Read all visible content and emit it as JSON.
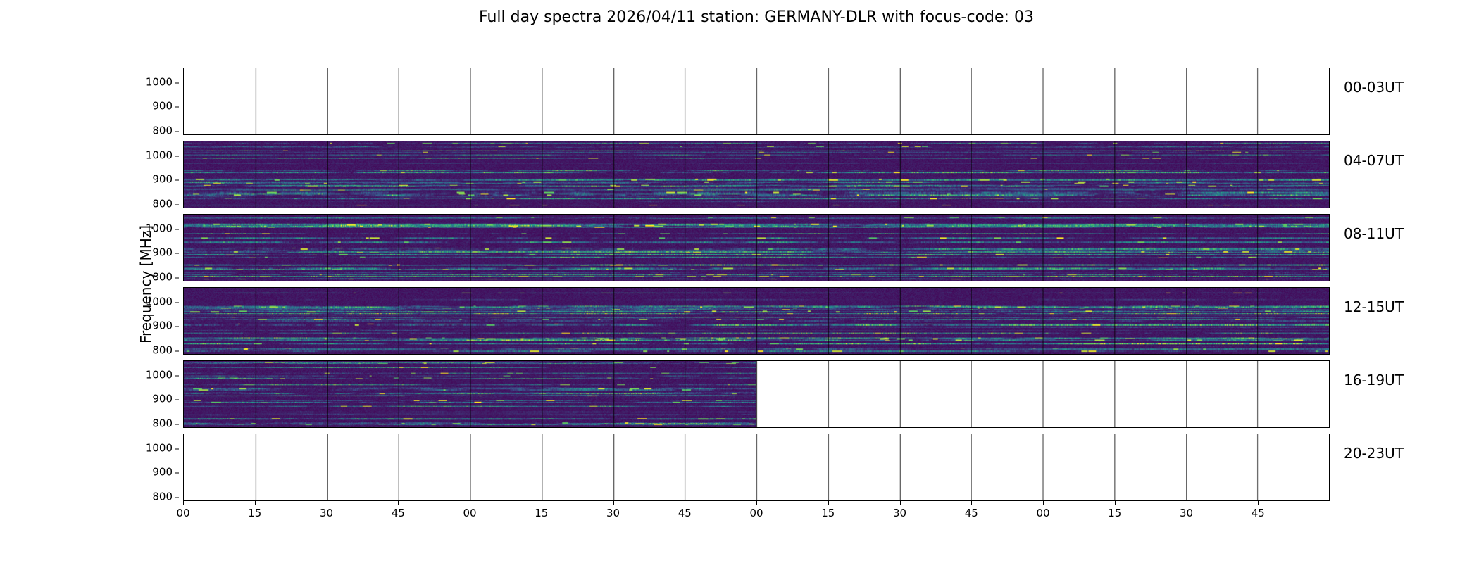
{
  "title": "Full day spectra 2026/04/11 station: GERMANY-DLR with focus-code: 03",
  "ylabel": "Frequency [MHz]",
  "yticks": [
    "1000",
    "900",
    "800"
  ],
  "xticks": [
    "00",
    "15",
    "30",
    "45",
    "00",
    "15",
    "30",
    "45",
    "00",
    "15",
    "30",
    "45",
    "00",
    "15",
    "30",
    "45"
  ],
  "rows": [
    {
      "label": "00-03UT",
      "coverage": 0
    },
    {
      "label": "04-07UT",
      "coverage": 1
    },
    {
      "label": "08-11UT",
      "coverage": 1
    },
    {
      "label": "12-15UT",
      "coverage": 1
    },
    {
      "label": "16-19UT",
      "coverage": 0.5
    },
    {
      "label": "20-23UT",
      "coverage": 0
    }
  ],
  "chart_data": {
    "type": "heatmap",
    "title": "Full day spectra 2026/04/11 station: GERMANY-DLR with focus-code: 03",
    "date": "2026/04/11",
    "station": "GERMANY-DLR",
    "focus_code": "03",
    "colormap": "viridis",
    "ylabel": "Frequency [MHz]",
    "ylim": [
      775,
      1060
    ],
    "yticks": [
      800,
      900,
      1000
    ],
    "x_axis": "minutes past the hour, 16 fifteen-minute segments per 4-hour row",
    "xtick_labels": [
      "00",
      "15",
      "30",
      "45",
      "00",
      "15",
      "30",
      "45",
      "00",
      "15",
      "30",
      "45",
      "00",
      "15",
      "30",
      "45"
    ],
    "legend_position": "none",
    "grid": "segment dividers every 15 minutes",
    "panels": [
      {
        "time_range": "00-03UT",
        "data_present": false,
        "coverage": 0
      },
      {
        "time_range": "04-07UT",
        "data_present": true,
        "coverage": 1
      },
      {
        "time_range": "08-11UT",
        "data_present": true,
        "coverage": 1
      },
      {
        "time_range": "12-15UT",
        "data_present": true,
        "coverage": 1
      },
      {
        "time_range": "16-19UT",
        "data_present": true,
        "coverage": 0.5
      },
      {
        "time_range": "20-23UT",
        "data_present": false,
        "coverage": 0
      }
    ]
  }
}
